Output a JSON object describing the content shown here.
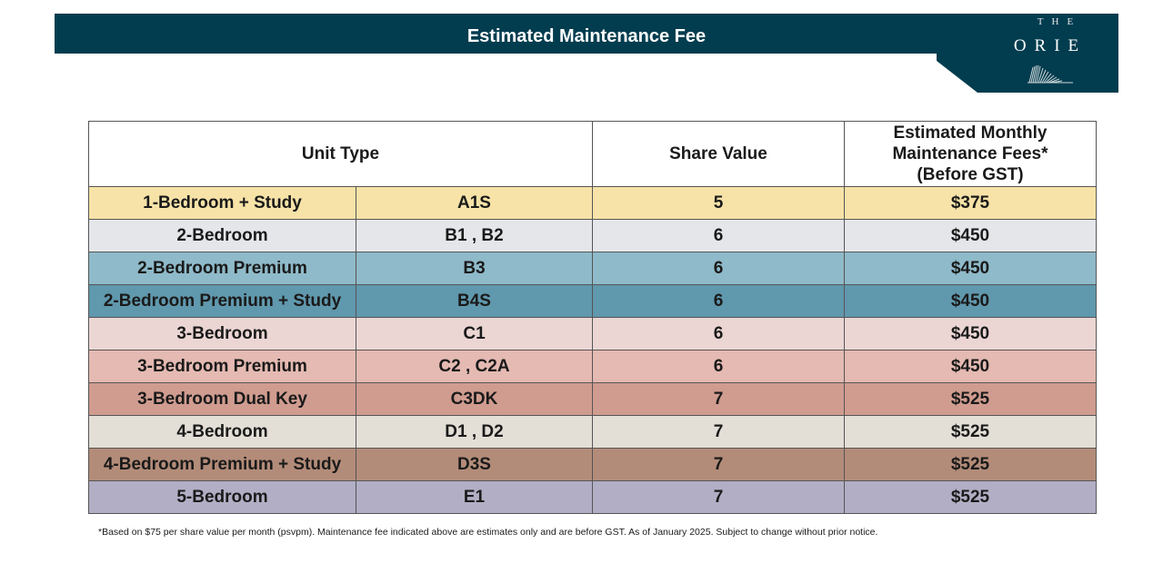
{
  "header": {
    "title": "Estimated Maintenance Fee"
  },
  "logo": {
    "the": "THE",
    "name": "ORIE"
  },
  "table": {
    "headers": {
      "unit_type": "Unit Type",
      "share_value": "Share Value",
      "fees_line1": "Estimated Monthly",
      "fees_line2": "Maintenance Fees*",
      "fees_line3": "(Before GST)"
    },
    "rows": [
      {
        "unit": "1-Bedroom + Study",
        "code": "A1S",
        "share": "5",
        "fee": "$375",
        "color": "#f7e3a8"
      },
      {
        "unit": "2-Bedroom",
        "code": "B1 , B2",
        "share": "6",
        "fee": "$450",
        "color": "#e4e6ea"
      },
      {
        "unit": "2-Bedroom Premium",
        "code": "B3",
        "share": "6",
        "fee": "$450",
        "color": "#8fbac9"
      },
      {
        "unit": "2-Bedroom Premium + Study",
        "code": "B4S",
        "share": "6",
        "fee": "$450",
        "color": "#6098ad"
      },
      {
        "unit": "3-Bedroom",
        "code": "C1",
        "share": "6",
        "fee": "$450",
        "color": "#ebd6d4"
      },
      {
        "unit": "3-Bedroom Premium",
        "code": "C2 , C2A",
        "share": "6",
        "fee": "$450",
        "color": "#e4bab2"
      },
      {
        "unit": "3-Bedroom Dual Key",
        "code": "C3DK",
        "share": "7",
        "fee": "$525",
        "color": "#d09c90"
      },
      {
        "unit": "4-Bedroom",
        "code": "D1 , D2",
        "share": "7",
        "fee": "$525",
        "color": "#e3ded6"
      },
      {
        "unit": "4-Bedroom Premium + Study",
        "code": "D3S",
        "share": "7",
        "fee": "$525",
        "color": "#b38c79"
      },
      {
        "unit": "5-Bedroom",
        "code": "E1",
        "share": "7",
        "fee": "$525",
        "color": "#b1aec5"
      }
    ]
  },
  "footnote": "*Based on $75 per share value per month (psvpm). Maintenance fee indicated above are estimates only and are before GST. As of January 2025. Subject to change without prior notice."
}
